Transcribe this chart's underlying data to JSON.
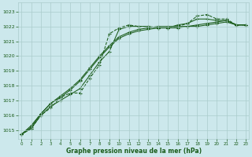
{
  "xlabel": "Graphe pression niveau de la mer (hPa)",
  "background_color": "#cce8ec",
  "grid_color": "#aacccc",
  "line_color": "#1a5c1a",
  "y_min": 1014.4,
  "y_max": 1023.6,
  "y_ticks": [
    1015,
    1016,
    1017,
    1018,
    1019,
    1020,
    1021,
    1022,
    1023
  ],
  "x_ticks": [
    0,
    1,
    2,
    3,
    4,
    5,
    6,
    7,
    8,
    9,
    10,
    11,
    12,
    13,
    14,
    15,
    16,
    17,
    18,
    19,
    20,
    21,
    22,
    23
  ],
  "series": [
    [
      1014.7,
      1015.1,
      1016.0,
      1016.5,
      1017.2,
      1017.5,
      1017.5,
      1018.5,
      1019.4,
      1021.5,
      1021.9,
      1022.1,
      1022.0,
      1022.0,
      1021.9,
      1021.9,
      1022.0,
      1022.2,
      1022.7,
      1022.8,
      1022.5,
      1022.5,
      1022.1,
      1022.1
    ],
    [
      1014.7,
      1015.1,
      1016.0,
      1016.6,
      1017.0,
      1017.4,
      1017.8,
      1018.7,
      1019.6,
      1020.3,
      1021.8,
      1022.0,
      1022.0,
      1022.0,
      1021.9,
      1021.9,
      1022.1,
      1022.2,
      1022.5,
      1022.5,
      1022.4,
      1022.4,
      1022.1,
      1022.1
    ],
    [
      1014.7,
      1015.2,
      1016.1,
      1016.8,
      1017.2,
      1017.7,
      1018.3,
      1019.1,
      1019.9,
      1020.6,
      1021.2,
      1021.5,
      1021.7,
      1021.8,
      1021.9,
      1021.9,
      1021.9,
      1022.0,
      1022.1,
      1022.2,
      1022.3,
      1022.4,
      1022.1,
      1022.1
    ],
    [
      1014.7,
      1015.3,
      1016.1,
      1016.8,
      1017.3,
      1017.8,
      1018.4,
      1019.2,
      1020.0,
      1020.7,
      1021.3,
      1021.6,
      1021.8,
      1021.9,
      1022.0,
      1022.0,
      1022.0,
      1022.0,
      1022.0,
      1022.1,
      1022.2,
      1022.3,
      1022.1,
      1022.1
    ]
  ],
  "line_styles": [
    "--",
    "-",
    "-",
    "-"
  ],
  "figsize": [
    3.2,
    2.0
  ],
  "dpi": 100
}
